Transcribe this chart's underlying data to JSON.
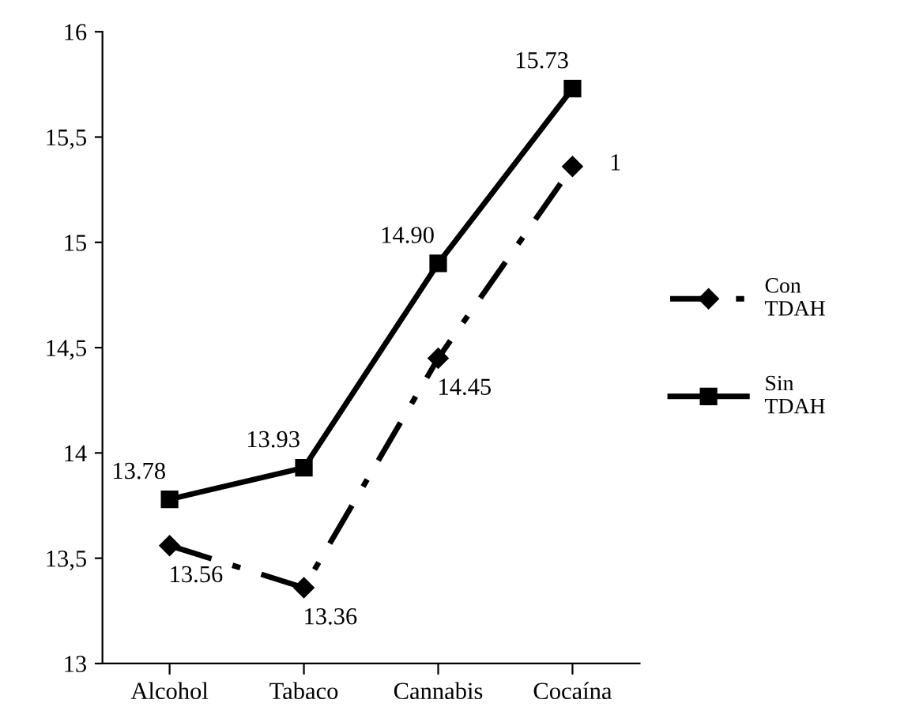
{
  "chart_data": {
    "type": "line",
    "categories": [
      "Alcohol",
      "Tabaco",
      "Cannabis",
      "Cocaína"
    ],
    "series": [
      {
        "name": "Con TDAH",
        "color": "#000000",
        "values": [
          13.56,
          13.36,
          14.45,
          15.36
        ],
        "marker": "diamond",
        "line_style": "dashdot",
        "value_labels": [
          "13.56",
          "13.36",
          "14.45",
          null
        ]
      },
      {
        "name": "Sin TDAH",
        "color": "#000000",
        "values": [
          13.78,
          13.93,
          14.9,
          15.73
        ],
        "marker": "square",
        "line_style": "solid",
        "value_labels": [
          "13.78",
          "13.93",
          "14.90",
          "15.73"
        ]
      }
    ],
    "ylim": [
      13,
      16
    ],
    "yticks": [
      13,
      {
        "value": 13.5,
        "label": "13,5"
      },
      14,
      {
        "value": 14.5,
        "label": "14,5"
      },
      15,
      {
        "value": 15.5,
        "label": "15,5"
      },
      16
    ],
    "annotations": [
      "1"
    ],
    "grid": false,
    "legend": "right"
  }
}
